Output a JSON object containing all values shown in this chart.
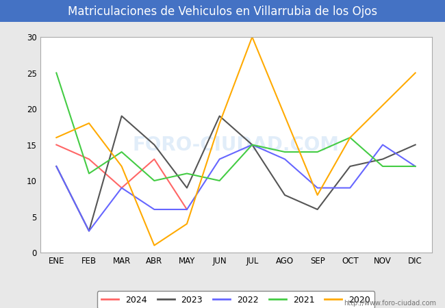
{
  "title": "Matriculaciones de Vehiculos en Villarrubia de los Ojos",
  "months": [
    "ENE",
    "FEB",
    "MAR",
    "ABR",
    "MAY",
    "JUN",
    "JUL",
    "AGO",
    "SEP",
    "OCT",
    "NOV",
    "DIC"
  ],
  "series": {
    "2024": {
      "color": "#ff6666",
      "values": [
        15,
        13,
        9,
        13,
        6,
        null,
        null,
        null,
        null,
        null,
        null,
        null
      ]
    },
    "2023": {
      "color": "#555555",
      "values": [
        12,
        3,
        19,
        15,
        9,
        19,
        15,
        8,
        6,
        12,
        13,
        15
      ]
    },
    "2022": {
      "color": "#6666ff",
      "values": [
        12,
        3,
        9,
        6,
        6,
        13,
        15,
        13,
        9,
        9,
        15,
        12
      ]
    },
    "2021": {
      "color": "#44cc44",
      "values": [
        25,
        11,
        14,
        10,
        11,
        10,
        15,
        14,
        14,
        16,
        12,
        12
      ]
    },
    "2020": {
      "color": "#ffaa00",
      "values": [
        16,
        18,
        12,
        1,
        4,
        18,
        30,
        null,
        8,
        16,
        null,
        25
      ]
    }
  },
  "ylim": [
    0,
    30
  ],
  "yticks": [
    0,
    5,
    10,
    15,
    20,
    25,
    30
  ],
  "fig_bg_color": "#4472c4",
  "plot_bg_color": "#e8e8e8",
  "inner_plot_bg": "#ffffff",
  "title_color": "white",
  "title_fontsize": 12,
  "watermark_plot": "FORO-CIUDAD.COM",
  "watermark_url": "http://www.foro-ciudad.com",
  "legend_order": [
    "2024",
    "2023",
    "2022",
    "2021",
    "2020"
  ],
  "grid_color": "#ffffff",
  "spine_color": "#aaaaaa"
}
